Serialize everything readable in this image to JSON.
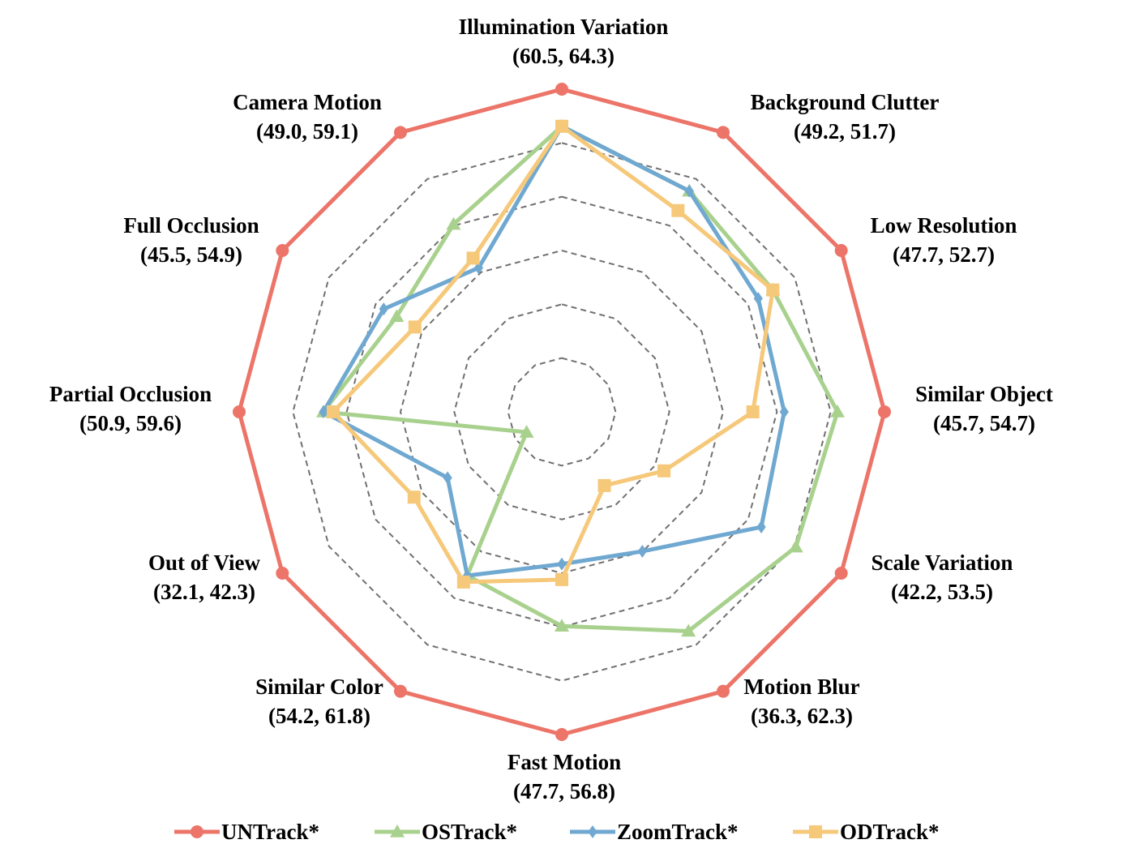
{
  "chart_data": {
    "type": "radar",
    "title": "",
    "axes": [
      {
        "label": "Illumination Variation",
        "range": "(60.5, 64.3)",
        "min": 60.5,
        "max": 64.3
      },
      {
        "label": "Background Clutter",
        "range": "(49.2, 51.7)",
        "min": 49.2,
        "max": 51.7
      },
      {
        "label": "Low Resolution",
        "range": "(47.7, 52.7)",
        "min": 47.7,
        "max": 52.7
      },
      {
        "label": "Similar Object",
        "range": "(45.7, 54.7)",
        "min": 45.7,
        "max": 54.7
      },
      {
        "label": "Scale Variation",
        "range": "(42.2, 53.5)",
        "min": 42.2,
        "max": 53.5
      },
      {
        "label": "Motion Blur",
        "range": "(36.3, 62.3)",
        "min": 36.3,
        "max": 62.3
      },
      {
        "label": "Fast Motion",
        "range": "(47.7, 56.8)",
        "min": 47.7,
        "max": 56.8
      },
      {
        "label": "Similar Color",
        "range": "(54.2, 61.8)",
        "min": 54.2,
        "max": 61.8
      },
      {
        "label": "Out of View",
        "range": "(32.1, 42.3)",
        "min": 32.1,
        "max": 42.3
      },
      {
        "label": "Partial Occlusion",
        "range": "(50.9, 59.6)",
        "min": 50.9,
        "max": 59.6
      },
      {
        "label": "Full Occlusion",
        "range": "(45.5, 54.9)",
        "min": 45.5,
        "max": 54.9
      },
      {
        "label": "Camera Motion",
        "range": "(49.0, 59.1)",
        "min": 49.0,
        "max": 59.1
      }
    ],
    "rings": 6,
    "grid": true,
    "legend_position": "bottom",
    "series": [
      {
        "name": "UNTrack*",
        "color": "#EC7468",
        "marker": "circle",
        "values": [
          64.3,
          51.7,
          52.7,
          54.7,
          53.5,
          62.3,
          56.8,
          61.8,
          42.3,
          59.6,
          54.9,
          59.1
        ]
      },
      {
        "name": "OSTrack*",
        "color": "#A9D18E",
        "marker": "triangle",
        "values": [
          63.8,
          51.1,
          51.3,
          53.2,
          51.4,
          55.9,
          53.3,
          58.2,
          32.1,
          57.0,
          50.5,
          55.3
        ]
      },
      {
        "name": "ZoomTrack*",
        "color": "#6FA8D0",
        "marker": "diamond",
        "values": [
          63.8,
          51.1,
          51.0,
          51.5,
          49.8,
          47.4,
          51.3,
          58.2,
          35.4,
          57.0,
          51.0,
          53.5
        ]
      },
      {
        "name": "ODTrack*",
        "color": "#F6C87A",
        "marker": "square",
        "values": [
          63.8,
          50.9,
          51.3,
          50.5,
          45.3,
          40.4,
          51.8,
          58.4,
          36.8,
          56.7,
          49.8,
          53.9
        ]
      }
    ]
  }
}
